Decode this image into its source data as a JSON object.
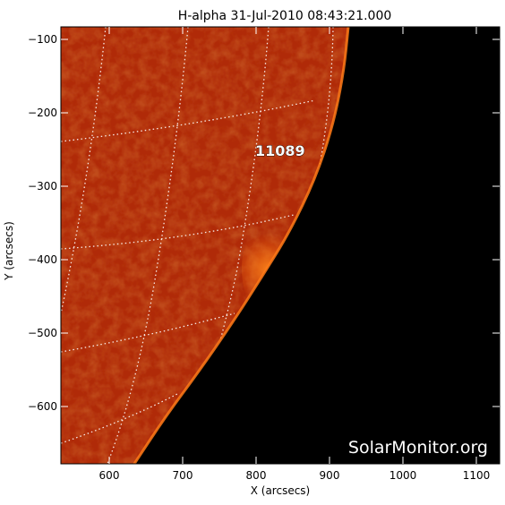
{
  "title": "H-alpha 31-Jul-2010 08:43:21.000",
  "xlabel": "X (arcsecs)",
  "ylabel": "Y (arcsecs)",
  "x_ticks": [
    "600",
    "700",
    "800",
    "900",
    "1000",
    "1100"
  ],
  "y_ticks": [
    "−100",
    "−200",
    "−300",
    "−400",
    "−500",
    "−600"
  ],
  "active_region": "11089",
  "watermark": "SolarMonitor.org",
  "colors": {
    "sun_base": "#b02a08",
    "sun_dark": "#8a1804",
    "sun_bright": "#ff7a12",
    "space": "#000000",
    "grid": "#ffffff"
  }
}
